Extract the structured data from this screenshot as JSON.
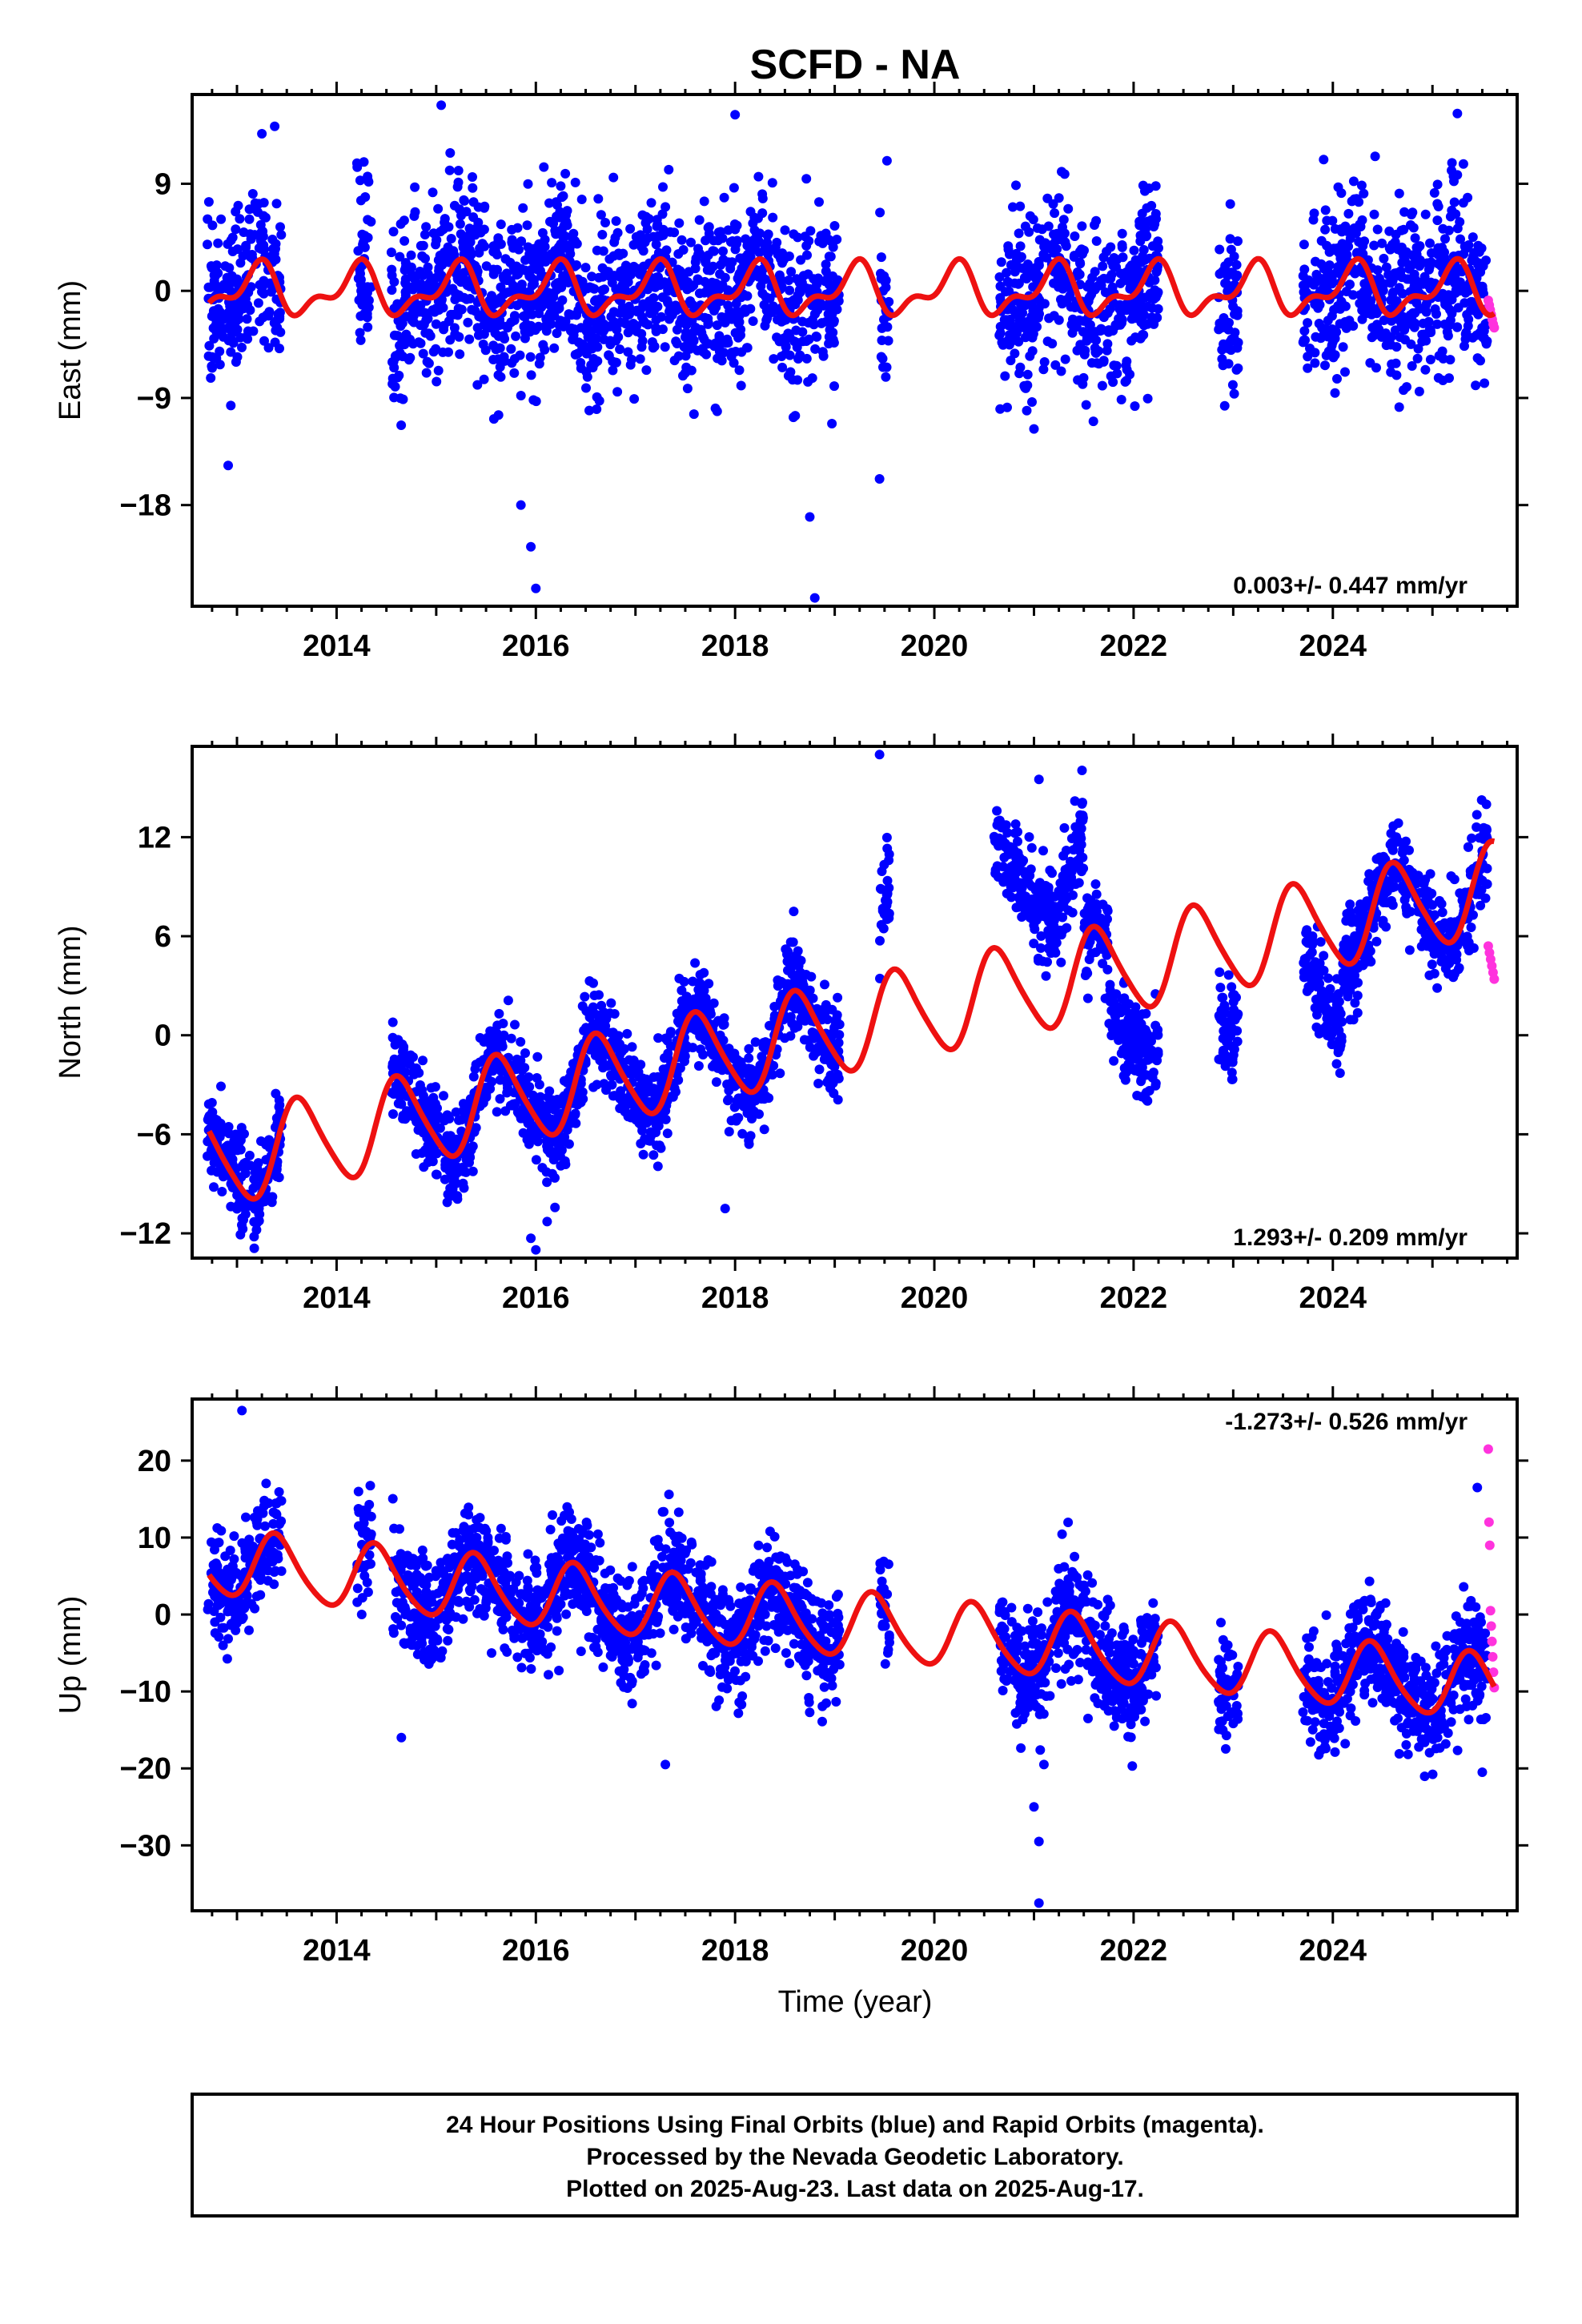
{
  "title": "SCFD - NA",
  "x_axis_label": "Time (year)",
  "footer": {
    "lines": [
      "24 Hour Positions Using Final Orbits (blue) and Rapid Orbits (magenta).",
      "Processed by the Nevada Geodetic Laboratory.",
      "Plotted on 2025-Aug-23. Last data on 2025-Aug-17."
    ]
  },
  "colors": {
    "final_orbits": "#0000ff",
    "rapid_orbits": "#ff33dd",
    "model": "#ee1111",
    "frame": "#000000"
  },
  "chart_data": [
    {
      "type": "scatter",
      "panel": "east",
      "ylabel": "East (mm)",
      "xlim": [
        2012.55,
        2025.85
      ],
      "ylim": [
        -26.5,
        16.5
      ],
      "x_ticks": [
        2014,
        2016,
        2018,
        2020,
        2022,
        2024
      ],
      "x_tick_labels": [
        "2014",
        "2016",
        "2018",
        "2020",
        "2022",
        "2024"
      ],
      "y_ticks": [
        9,
        0,
        -9,
        -18
      ],
      "y_tick_labels": [
        "9",
        "0",
        "−9",
        "−18"
      ],
      "rate_label": "0.003+/- 0.447 mm/yr",
      "rate_placement": "bottom-right",
      "model": {
        "rate": 0.003,
        "offset": 0.0,
        "annual_amp": 1.8,
        "annual_phase": 0.05,
        "semiannual_amp": 1.0,
        "semiannual_phase": 0.35
      },
      "scatter_sd": 3.6,
      "data_segments": [
        [
          2012.7,
          2013.45
        ],
        [
          2014.2,
          2014.35
        ],
        [
          2014.55,
          2019.05
        ],
        [
          2019.45,
          2019.55
        ],
        [
          2020.65,
          2022.25
        ],
        [
          2022.85,
          2023.05
        ],
        [
          2023.7,
          2025.55
        ]
      ],
      "rapid_points": {
        "x_range": [
          2025.56,
          2025.62
        ],
        "values": [
          -0.8,
          -1.2,
          -1.6,
          -2.0,
          -2.4,
          -2.8,
          -3.1
        ]
      },
      "outliers": [
        {
          "x": 2015.05,
          "y": 15.6
        },
        {
          "x": 2018.0,
          "y": 14.8
        },
        {
          "x": 2016.0,
          "y": -25.0
        },
        {
          "x": 2015.95,
          "y": -21.5
        },
        {
          "x": 2015.85,
          "y": -18.0
        },
        {
          "x": 2018.75,
          "y": -19.0
        },
        {
          "x": 2018.8,
          "y": -25.8
        },
        {
          "x": 2019.45,
          "y": -15.8
        },
        {
          "x": 2013.25,
          "y": 13.2
        },
        {
          "x": 2025.25,
          "y": 14.9
        },
        {
          "x": 2021.0,
          "y": -11.6
        }
      ]
    },
    {
      "type": "scatter",
      "panel": "north",
      "ylabel": "North (mm)",
      "xlim": [
        2012.55,
        2025.85
      ],
      "ylim": [
        -13.5,
        17.5
      ],
      "x_ticks": [
        2014,
        2016,
        2018,
        2020,
        2022,
        2024
      ],
      "x_tick_labels": [
        "2014",
        "2016",
        "2018",
        "2020",
        "2022",
        "2024"
      ],
      "y_ticks": [
        12,
        6,
        0,
        -6,
        -12
      ],
      "y_tick_labels": [
        "12",
        "6",
        "0",
        "−6",
        "−12"
      ],
      "rate_label": "1.293+/- 0.209 mm/yr",
      "rate_placement": "bottom-right",
      "model": {
        "rate": 1.293,
        "offset": -8.0,
        "annual_amp": 2.7,
        "annual_phase": 0.62,
        "semiannual_amp": 0.4,
        "semiannual_phase": 0.1
      },
      "scatter_sd": 1.4,
      "data_segments": [
        [
          2012.7,
          2013.45
        ],
        [
          2014.55,
          2019.05
        ],
        [
          2019.45,
          2019.55
        ],
        [
          2020.6,
          2021.85
        ],
        [
          2021.85,
          2022.25
        ],
        [
          2022.85,
          2023.05
        ],
        [
          2023.7,
          2025.55
        ]
      ],
      "data_shifts": [
        {
          "x_range": [
            2020.6,
            2021.5
          ],
          "shift": 6.5
        },
        {
          "x_range": [
            2019.45,
            2019.55
          ],
          "shift": 5.0
        },
        {
          "x_range": [
            2021.75,
            2022.3
          ],
          "shift": -3.5
        },
        {
          "x_range": [
            2022.85,
            2023.05
          ],
          "shift": -4.0
        },
        {
          "x_range": [
            2023.7,
            2024.1
          ],
          "shift": -4.0
        }
      ],
      "rapid_points": {
        "x_range": [
          2025.56,
          2025.62
        ],
        "values": [
          5.4,
          5.0,
          4.6,
          4.2,
          3.8,
          3.4
        ]
      },
      "outliers": [
        {
          "x": 2019.45,
          "y": 17.0
        },
        {
          "x": 2021.05,
          "y": 15.5
        },
        {
          "x": 2016.0,
          "y": -13.0
        },
        {
          "x": 2015.95,
          "y": -12.3
        },
        {
          "x": 2017.9,
          "y": -10.5
        }
      ]
    },
    {
      "type": "scatter",
      "panel": "up",
      "ylabel": "Up (mm)",
      "xlim": [
        2012.55,
        2025.85
      ],
      "ylim": [
        -38.5,
        28.0
      ],
      "x_ticks": [
        2014,
        2016,
        2018,
        2020,
        2022,
        2024
      ],
      "x_tick_labels": [
        "2014",
        "2016",
        "2018",
        "2020",
        "2022",
        "2024"
      ],
      "y_ticks": [
        20,
        10,
        0,
        -10,
        -20,
        -30
      ],
      "y_tick_labels": [
        "20",
        "10",
        "0",
        "−10",
        "−20",
        "−30"
      ],
      "rate_label": "-1.273+/- 0.526 mm/yr",
      "rate_placement": "top-right",
      "model": {
        "rate": -1.273,
        "offset": 7.0,
        "annual_amp": 4.2,
        "annual_phase": 0.85,
        "semiannual_amp": 0.6,
        "semiannual_phase": 0.3
      },
      "scatter_sd": 3.6,
      "data_segments": [
        [
          2012.7,
          2013.45
        ],
        [
          2014.2,
          2014.35
        ],
        [
          2014.55,
          2019.05
        ],
        [
          2019.45,
          2019.55
        ],
        [
          2020.65,
          2022.25
        ],
        [
          2022.85,
          2023.05
        ],
        [
          2023.7,
          2025.55
        ]
      ],
      "rapid_points": {
        "x_range": [
          2025.56,
          2025.62
        ],
        "values": [
          21.5,
          12.0,
          9.0,
          0.5,
          -1.5,
          -3.5,
          -5.5,
          -7.5,
          -9.5
        ]
      },
      "outliers": [
        {
          "x": 2013.05,
          "y": 26.5
        },
        {
          "x": 2021.05,
          "y": -37.5
        },
        {
          "x": 2021.05,
          "y": -29.5
        },
        {
          "x": 2021.0,
          "y": -25.0
        },
        {
          "x": 2021.1,
          "y": -19.5
        },
        {
          "x": 2025.45,
          "y": 16.5
        },
        {
          "x": 2017.3,
          "y": -19.5
        },
        {
          "x": 2014.65,
          "y": -16.0
        },
        {
          "x": 2025.5,
          "y": -20.5
        }
      ]
    }
  ]
}
